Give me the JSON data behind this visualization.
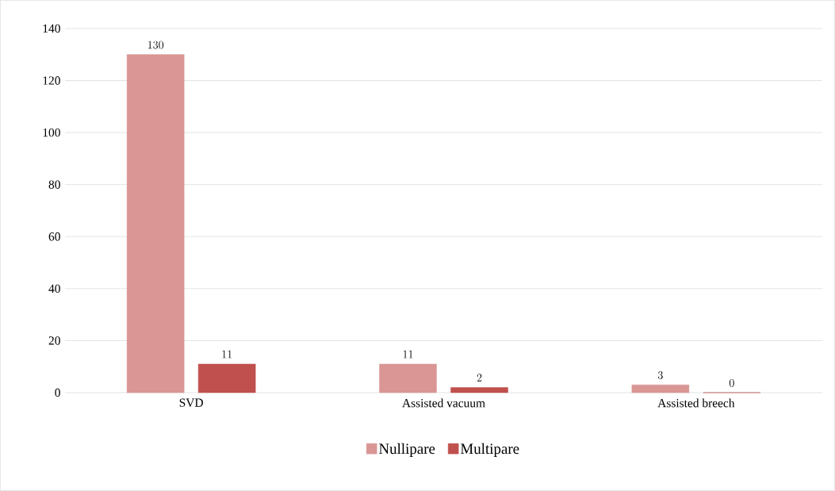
{
  "chart_data": {
    "type": "bar",
    "categories": [
      "SVD",
      "Assisted vacuum",
      "Assisted breech"
    ],
    "series": [
      {
        "name": "Nullipare",
        "color": "#d99694",
        "values": [
          130,
          11,
          3
        ]
      },
      {
        "name": "Multipare",
        "color": "#c0504d",
        "values": [
          11,
          2,
          0
        ]
      }
    ],
    "ylim": [
      0,
      140
    ],
    "yticks": [
      0,
      20,
      40,
      60,
      80,
      100,
      120,
      140
    ],
    "grid": "y",
    "legend": "bottom",
    "data_labels": true
  }
}
